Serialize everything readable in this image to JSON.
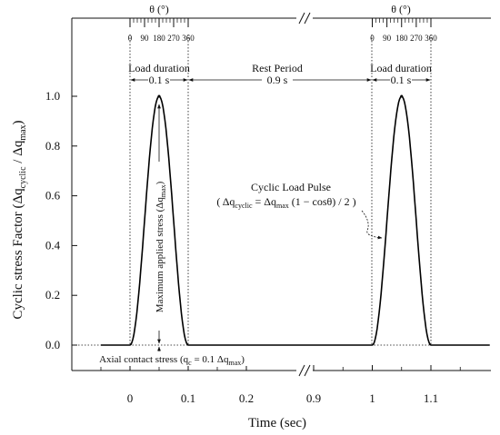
{
  "chart_data": {
    "type": "line",
    "title": "",
    "xlabel": "Time (sec)",
    "ylabel_main": "Cyclic stress Factor (Δq",
    "ylabel_sub1": "cyclic",
    "ylabel_mid": " / Δq",
    "ylabel_sub2": "max",
    "ylabel_end": ")",
    "grid": false,
    "x_tick_labels": [
      "0",
      "0.1",
      "0.2",
      "0.9",
      "1",
      "1.1"
    ],
    "x_axis_break": "between 0.2 and 0.9",
    "ylim": [
      0,
      1.0
    ],
    "y_ticks": [
      0.0,
      0.2,
      0.4,
      0.6,
      0.8,
      1.0
    ],
    "y_tick_labels": [
      "0.0",
      "0.2",
      "0.4",
      "0.6",
      "0.8",
      "1.0"
    ],
    "theta_axis": {
      "label": "θ (°)",
      "tick_labels": [
        "0",
        "90",
        "180",
        "270",
        "360"
      ]
    },
    "series": [
      {
        "pulses": [
          {
            "start": 0.0,
            "end": 0.1,
            "peak_time": 0.05,
            "peak": 1.0
          },
          {
            "start": 1.0,
            "end": 1.1,
            "peak_time": 1.05,
            "peak": 1.0
          }
        ],
        "baseline": 0.0
      }
    ],
    "annotations": {
      "load_duration_label": "Load duration",
      "load_duration_value": "0.1 s",
      "rest_period_label": "Rest Period",
      "rest_period_value": "0.9 s",
      "max_stress_label": "Maximum applied stress (Δq",
      "max_stress_sub": "max",
      "max_stress_end": ")",
      "pulse_title": "Cyclic Load Pulse",
      "pulse_eq_a": "( Δq",
      "pulse_eq_sub1": "cyclic",
      "pulse_eq_b": " = Δq",
      "pulse_eq_sub2": "max",
      "pulse_eq_c": " (1 − cosθ) / 2 )",
      "contact_a": "Axial contact stress (q",
      "contact_sub1": "c",
      "contact_b": " = 0.1 Δq",
      "contact_sub2": "max",
      "contact_c": ")"
    }
  }
}
